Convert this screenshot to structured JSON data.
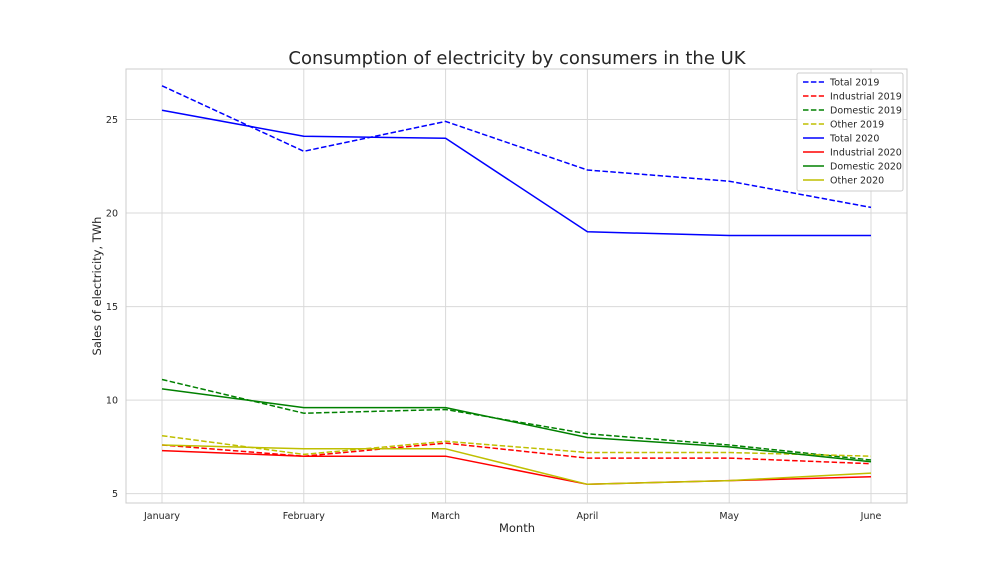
{
  "chart_data": {
    "type": "line",
    "title": "Consumption of electricity by consumers in the UK",
    "xlabel": "Month",
    "ylabel": "Sales of electricity, TWh",
    "categories": [
      "January",
      "February",
      "March",
      "April",
      "May",
      "June"
    ],
    "ylim": [
      4.5,
      27.7
    ],
    "yticks": [
      5,
      10,
      15,
      20,
      25
    ],
    "grid": true,
    "legend_position": "top-right",
    "series": [
      {
        "name": "Total 2019",
        "color": "#0000ff",
        "dash": "dashed",
        "values": [
          26.8,
          23.3,
          24.9,
          22.3,
          21.7,
          20.3
        ]
      },
      {
        "name": "Industrial 2019",
        "color": "#ff0000",
        "dash": "dashed",
        "values": [
          7.6,
          7.0,
          7.7,
          6.9,
          6.9,
          6.6
        ]
      },
      {
        "name": "Domestic 2019",
        "color": "#008000",
        "dash": "dashed",
        "values": [
          11.1,
          9.3,
          9.5,
          8.2,
          7.6,
          6.8
        ]
      },
      {
        "name": "Other 2019",
        "color": "#bfbf00",
        "dash": "dashed",
        "values": [
          8.1,
          7.1,
          7.8,
          7.2,
          7.2,
          7.0
        ]
      },
      {
        "name": "Total 2020",
        "color": "#0000ff",
        "dash": "solid",
        "values": [
          25.5,
          24.1,
          24.0,
          19.0,
          18.8,
          18.8
        ]
      },
      {
        "name": "Industrial 2020",
        "color": "#ff0000",
        "dash": "solid",
        "values": [
          7.3,
          7.0,
          7.0,
          5.5,
          5.7,
          5.9
        ]
      },
      {
        "name": "Domestic 2020",
        "color": "#008000",
        "dash": "solid",
        "values": [
          10.6,
          9.6,
          9.6,
          8.0,
          7.5,
          6.7
        ]
      },
      {
        "name": "Other 2020",
        "color": "#bfbf00",
        "dash": "solid",
        "values": [
          7.6,
          7.4,
          7.4,
          5.5,
          5.7,
          6.1
        ]
      }
    ]
  }
}
